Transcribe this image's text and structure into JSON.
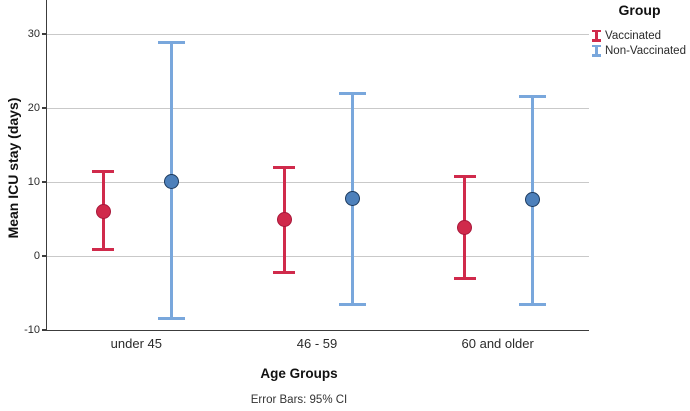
{
  "chart_data": {
    "type": "errorbar",
    "legend_title": "Group",
    "ylabel": "Mean ICU stay (days)",
    "xlabel": "Age Groups",
    "footnote": "Error Bars: 95% CI",
    "categories": [
      "under 45",
      "46 - 59",
      "60 and older"
    ],
    "yticks": [
      30,
      20,
      10,
      0,
      -10
    ],
    "ylim": [
      -10,
      34.6
    ],
    "grid": "horizontal-only",
    "legend_position": "top-right",
    "colors": {
      "axis": "#3c3c3c",
      "gridline": "#c9c9c9",
      "background": "#ffffff"
    },
    "series": [
      {
        "name": "Vaccinated",
        "color": "#d02a4b",
        "marker_fill": "#d02a4b",
        "marker_border": "#a8173a",
        "means": [
          6.0,
          4.9,
          3.9
        ],
        "ci_low": [
          0.9,
          -2.2,
          -3.1
        ],
        "ci_high": [
          11.4,
          11.9,
          10.8
        ]
      },
      {
        "name": "Non-Vaccinated",
        "color": "#79a7dc",
        "marker_fill": "#4d80bb",
        "marker_border": "#1c3a5e",
        "means": [
          10.1,
          7.8,
          7.6
        ],
        "ci_low": [
          -8.4,
          -6.5,
          -6.6
        ],
        "ci_high": [
          28.9,
          21.9,
          21.6
        ]
      }
    ]
  }
}
